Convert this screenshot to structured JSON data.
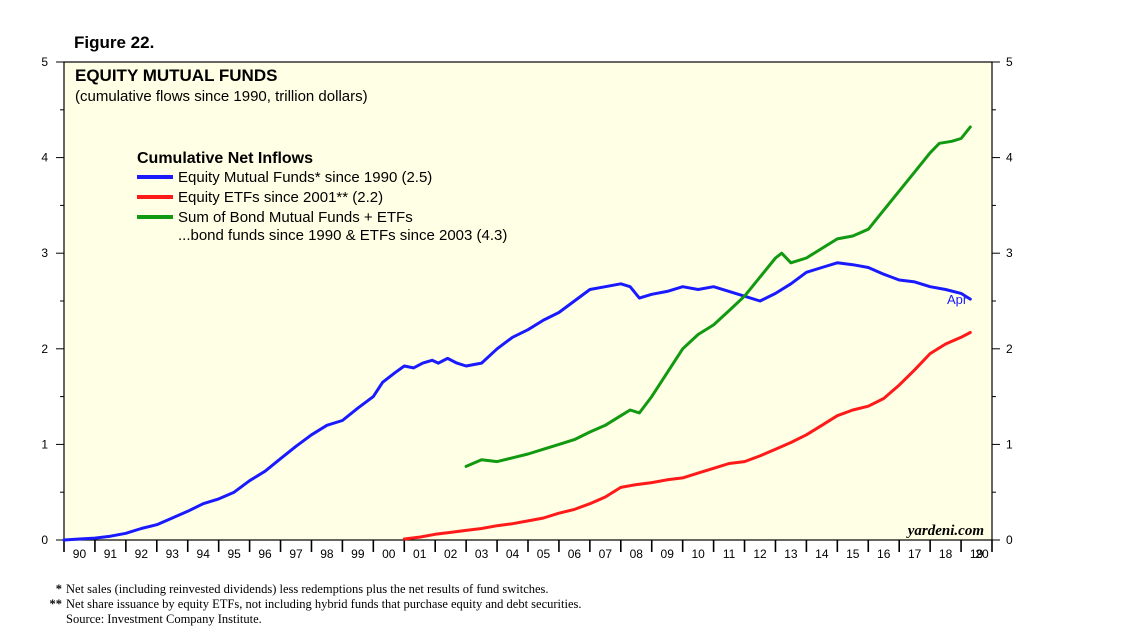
{
  "figure_label": "Figure 22.",
  "colors": {
    "plot_bg": "#ffffe5",
    "equity_mf": "#1a1aff",
    "equity_etf": "#ff1a1a",
    "bond": "#119911",
    "axis": "#000000"
  },
  "chart_data": {
    "type": "line",
    "title": "EQUITY MUTUAL FUNDS",
    "subtitle": "(cumulative flows since 1990, trillion dollars)",
    "ylim": [
      0,
      5
    ],
    "xlim": [
      1990,
      2020
    ],
    "y_ticks": [
      "0",
      "1",
      "2",
      "3",
      "4",
      "5"
    ],
    "x_ticks": [
      "90",
      "91",
      "92",
      "93",
      "94",
      "95",
      "96",
      "97",
      "98",
      "99",
      "00",
      "01",
      "02",
      "03",
      "04",
      "05",
      "06",
      "07",
      "08",
      "09",
      "10",
      "11",
      "12",
      "13",
      "14",
      "15",
      "16",
      "17",
      "18",
      "19",
      "20"
    ],
    "legend_title": "Cumulative Net Inflows",
    "series": [
      {
        "name": "Equity Mutual Funds* since 1990 (2.5)",
        "color_key": "equity_mf",
        "end_label": "Apr",
        "points": [
          [
            1990.0,
            0.0
          ],
          [
            1990.5,
            0.01
          ],
          [
            1991.0,
            0.02
          ],
          [
            1991.5,
            0.04
          ],
          [
            1992.0,
            0.07
          ],
          [
            1992.5,
            0.12
          ],
          [
            1993.0,
            0.16
          ],
          [
            1993.5,
            0.23
          ],
          [
            1994.0,
            0.3
          ],
          [
            1994.5,
            0.38
          ],
          [
            1995.0,
            0.43
          ],
          [
            1995.5,
            0.5
          ],
          [
            1996.0,
            0.62
          ],
          [
            1996.5,
            0.72
          ],
          [
            1997.0,
            0.85
          ],
          [
            1997.5,
            0.98
          ],
          [
            1998.0,
            1.1
          ],
          [
            1998.5,
            1.2
          ],
          [
            1999.0,
            1.25
          ],
          [
            1999.5,
            1.38
          ],
          [
            2000.0,
            1.5
          ],
          [
            2000.3,
            1.65
          ],
          [
            2000.7,
            1.75
          ],
          [
            2001.0,
            1.82
          ],
          [
            2001.3,
            1.8
          ],
          [
            2001.6,
            1.85
          ],
          [
            2001.9,
            1.88
          ],
          [
            2002.1,
            1.85
          ],
          [
            2002.4,
            1.9
          ],
          [
            2002.7,
            1.85
          ],
          [
            2003.0,
            1.82
          ],
          [
            2003.5,
            1.85
          ],
          [
            2004.0,
            2.0
          ],
          [
            2004.5,
            2.12
          ],
          [
            2005.0,
            2.2
          ],
          [
            2005.5,
            2.3
          ],
          [
            2006.0,
            2.38
          ],
          [
            2006.5,
            2.5
          ],
          [
            2007.0,
            2.62
          ],
          [
            2007.5,
            2.65
          ],
          [
            2008.0,
            2.68
          ],
          [
            2008.3,
            2.65
          ],
          [
            2008.6,
            2.53
          ],
          [
            2009.0,
            2.57
          ],
          [
            2009.5,
            2.6
          ],
          [
            2010.0,
            2.65
          ],
          [
            2010.5,
            2.62
          ],
          [
            2011.0,
            2.65
          ],
          [
            2011.5,
            2.6
          ],
          [
            2012.0,
            2.55
          ],
          [
            2012.5,
            2.5
          ],
          [
            2013.0,
            2.58
          ],
          [
            2013.5,
            2.68
          ],
          [
            2014.0,
            2.8
          ],
          [
            2014.5,
            2.85
          ],
          [
            2015.0,
            2.9
          ],
          [
            2015.5,
            2.88
          ],
          [
            2016.0,
            2.85
          ],
          [
            2016.5,
            2.78
          ],
          [
            2017.0,
            2.72
          ],
          [
            2017.5,
            2.7
          ],
          [
            2018.0,
            2.65
          ],
          [
            2018.5,
            2.62
          ],
          [
            2019.0,
            2.58
          ],
          [
            2019.3,
            2.52
          ]
        ]
      },
      {
        "name": "Equity ETFs since 2001** (2.2)",
        "color_key": "equity_etf",
        "points": [
          [
            2001.0,
            0.01
          ],
          [
            2001.5,
            0.03
          ],
          [
            2002.0,
            0.06
          ],
          [
            2002.5,
            0.08
          ],
          [
            2003.0,
            0.1
          ],
          [
            2003.5,
            0.12
          ],
          [
            2004.0,
            0.15
          ],
          [
            2004.5,
            0.17
          ],
          [
            2005.0,
            0.2
          ],
          [
            2005.5,
            0.23
          ],
          [
            2006.0,
            0.28
          ],
          [
            2006.5,
            0.32
          ],
          [
            2007.0,
            0.38
          ],
          [
            2007.5,
            0.45
          ],
          [
            2008.0,
            0.55
          ],
          [
            2008.5,
            0.58
          ],
          [
            2009.0,
            0.6
          ],
          [
            2009.5,
            0.63
          ],
          [
            2010.0,
            0.65
          ],
          [
            2010.5,
            0.7
          ],
          [
            2011.0,
            0.75
          ],
          [
            2011.5,
            0.8
          ],
          [
            2012.0,
            0.82
          ],
          [
            2012.5,
            0.88
          ],
          [
            2013.0,
            0.95
          ],
          [
            2013.5,
            1.02
          ],
          [
            2014.0,
            1.1
          ],
          [
            2014.5,
            1.2
          ],
          [
            2015.0,
            1.3
          ],
          [
            2015.5,
            1.36
          ],
          [
            2016.0,
            1.4
          ],
          [
            2016.5,
            1.48
          ],
          [
            2017.0,
            1.62
          ],
          [
            2017.5,
            1.78
          ],
          [
            2018.0,
            1.95
          ],
          [
            2018.5,
            2.05
          ],
          [
            2019.0,
            2.12
          ],
          [
            2019.3,
            2.17
          ]
        ]
      },
      {
        "name": "Sum of Bond Mutual Funds + ETFs",
        "name_line2": "...bond funds since 1990 & ETFs since 2003 (4.3)",
        "color_key": "bond",
        "points": [
          [
            2003.0,
            0.77
          ],
          [
            2003.5,
            0.84
          ],
          [
            2004.0,
            0.82
          ],
          [
            2004.5,
            0.86
          ],
          [
            2005.0,
            0.9
          ],
          [
            2005.5,
            0.95
          ],
          [
            2006.0,
            1.0
          ],
          [
            2006.5,
            1.05
          ],
          [
            2007.0,
            1.13
          ],
          [
            2007.5,
            1.2
          ],
          [
            2008.0,
            1.3
          ],
          [
            2008.3,
            1.36
          ],
          [
            2008.6,
            1.33
          ],
          [
            2009.0,
            1.5
          ],
          [
            2009.5,
            1.75
          ],
          [
            2010.0,
            2.0
          ],
          [
            2010.5,
            2.15
          ],
          [
            2011.0,
            2.25
          ],
          [
            2011.5,
            2.4
          ],
          [
            2012.0,
            2.55
          ],
          [
            2012.5,
            2.75
          ],
          [
            2013.0,
            2.95
          ],
          [
            2013.2,
            3.0
          ],
          [
            2013.5,
            2.9
          ],
          [
            2014.0,
            2.95
          ],
          [
            2014.5,
            3.05
          ],
          [
            2015.0,
            3.15
          ],
          [
            2015.5,
            3.18
          ],
          [
            2016.0,
            3.25
          ],
          [
            2016.5,
            3.45
          ],
          [
            2017.0,
            3.65
          ],
          [
            2017.5,
            3.85
          ],
          [
            2018.0,
            4.05
          ],
          [
            2018.3,
            4.15
          ],
          [
            2018.7,
            4.17
          ],
          [
            2019.0,
            4.2
          ],
          [
            2019.3,
            4.32
          ]
        ]
      }
    ],
    "watermark": "yardeni.com"
  },
  "footnotes": [
    {
      "mark": "*",
      "text": "Net sales (including reinvested dividends) less redemptions plus the net results of fund switches."
    },
    {
      "mark": "**",
      "text": "Net share issuance by equity ETFs, not including hybrid funds that purchase equity and debt securities."
    }
  ],
  "source": "Source: Investment Company Institute."
}
